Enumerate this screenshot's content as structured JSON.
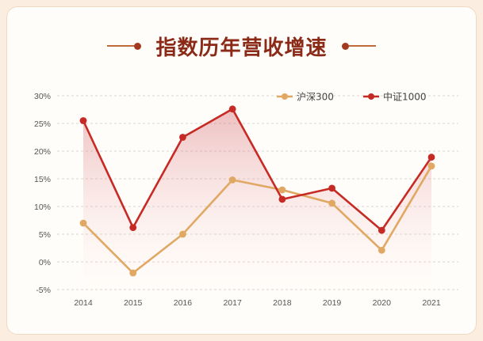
{
  "colors": {
    "hs300": "#e0a862",
    "zz1000": "#c62a24",
    "title": "#8a2a17"
  },
  "chart_data": {
    "type": "line",
    "title": "指数历年营收增速",
    "categories": [
      "2014",
      "2015",
      "2016",
      "2017",
      "2018",
      "2019",
      "2020",
      "2021"
    ],
    "series": [
      {
        "name": "沪深300",
        "values": [
          7.0,
          -2.0,
          5.0,
          14.8,
          13.0,
          10.6,
          2.1,
          17.3
        ]
      },
      {
        "name": "中证1000",
        "values": [
          25.5,
          6.2,
          22.5,
          27.6,
          11.3,
          13.3,
          5.7,
          18.9
        ]
      }
    ],
    "yticks": [
      "30%",
      "25%",
      "20%",
      "15%",
      "10%",
      "5%",
      "0%",
      "-5%"
    ],
    "ylim": [
      -5,
      30
    ],
    "grid": true,
    "legend": "top-right"
  }
}
